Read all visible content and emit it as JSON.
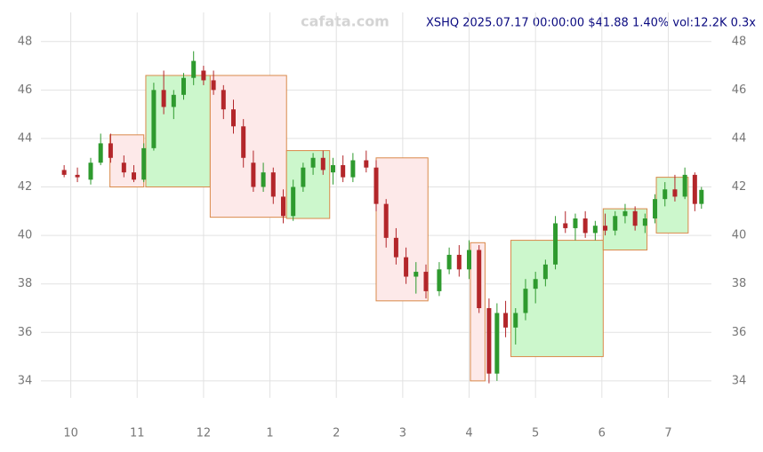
{
  "chart_data": {
    "type": "candlestick",
    "title": "XSHQ 2025.07.17 00:00:00 $41.88 1.40% vol:12.2K 0.3x",
    "watermark": "cafata.com",
    "xlim": [
      -0.45,
      9.65
    ],
    "xticks": [
      {
        "value": 0,
        "label": "10"
      },
      {
        "value": 1,
        "label": "11"
      },
      {
        "value": 2,
        "label": "12"
      },
      {
        "value": 3,
        "label": "1"
      },
      {
        "value": 4,
        "label": "2"
      },
      {
        "value": 5,
        "label": "3"
      },
      {
        "value": 6,
        "label": "4"
      },
      {
        "value": 7,
        "label": "5"
      },
      {
        "value": 8,
        "label": "6"
      },
      {
        "value": 9,
        "label": "7"
      }
    ],
    "ylim": [
      33.3,
      49.2
    ],
    "yticks": [
      34,
      36,
      38,
      40,
      42,
      44,
      46,
      48
    ],
    "grid": true,
    "up_color": "#2e9a2e",
    "down_color": "#b3262a",
    "x": [
      -0.1,
      0.1,
      0.3,
      0.45,
      0.6,
      0.8,
      0.95,
      1.1,
      1.25,
      1.4,
      1.55,
      1.7,
      1.85,
      2.0,
      2.15,
      2.3,
      2.45,
      2.6,
      2.75,
      2.9,
      3.05,
      3.2,
      3.35,
      3.5,
      3.65,
      3.8,
      3.95,
      4.1,
      4.25,
      4.45,
      4.6,
      4.75,
      4.9,
      5.05,
      5.2,
      5.35,
      5.55,
      5.7,
      5.85,
      6.0,
      6.15,
      6.3,
      6.42,
      6.55,
      6.7,
      6.85,
      7.0,
      7.15,
      7.3,
      7.45,
      7.6,
      7.75,
      7.9,
      8.05,
      8.2,
      8.35,
      8.5,
      8.65,
      8.8,
      8.95,
      9.1,
      9.25,
      9.4,
      9.5
    ],
    "open": [
      42.7,
      42.5,
      42.3,
      43.0,
      43.8,
      43.0,
      42.6,
      42.3,
      43.6,
      46.0,
      45.3,
      45.8,
      46.5,
      46.8,
      46.4,
      46.0,
      45.2,
      44.5,
      43.0,
      42.0,
      42.6,
      41.6,
      40.8,
      42.0,
      42.8,
      43.2,
      42.6,
      42.9,
      42.4,
      43.1,
      42.8,
      41.3,
      39.9,
      39.1,
      38.3,
      38.5,
      37.7,
      38.6,
      39.2,
      38.6,
      39.4,
      37.0,
      34.3,
      36.8,
      36.2,
      36.8,
      37.8,
      38.2,
      38.8,
      40.5,
      40.3,
      40.7,
      40.1,
      40.4,
      40.2,
      40.8,
      41.0,
      40.4,
      40.7,
      41.5,
      41.9,
      41.6,
      42.5,
      41.3
    ],
    "high": [
      42.9,
      42.8,
      43.2,
      44.2,
      44.2,
      43.3,
      42.9,
      43.8,
      46.3,
      46.8,
      46.0,
      46.7,
      47.6,
      47.0,
      46.8,
      46.2,
      45.6,
      44.8,
      43.5,
      43.0,
      42.8,
      41.9,
      42.3,
      43.0,
      43.4,
      43.5,
      43.2,
      43.3,
      43.4,
      43.5,
      43.1,
      41.5,
      40.3,
      39.5,
      38.9,
      38.8,
      38.9,
      39.5,
      39.6,
      39.8,
      39.6,
      37.4,
      37.2,
      37.3,
      37.0,
      38.2,
      38.5,
      39.0,
      40.8,
      41.0,
      40.9,
      41.0,
      40.6,
      40.9,
      41.0,
      41.3,
      41.2,
      40.9,
      41.7,
      42.2,
      42.5,
      42.8,
      42.6,
      42.0
    ],
    "low": [
      42.4,
      42.2,
      42.1,
      42.9,
      43.0,
      42.4,
      42.2,
      42.2,
      43.5,
      45.0,
      44.8,
      45.6,
      46.2,
      46.2,
      45.8,
      44.8,
      44.2,
      42.8,
      41.8,
      41.8,
      41.3,
      40.5,
      40.6,
      41.8,
      42.5,
      42.5,
      42.1,
      42.2,
      42.2,
      42.6,
      41.0,
      39.5,
      38.8,
      38.0,
      37.6,
      37.4,
      37.5,
      38.4,
      38.3,
      38.2,
      36.8,
      33.9,
      34.0,
      35.8,
      35.5,
      36.5,
      37.2,
      37.9,
      38.6,
      40.1,
      39.8,
      39.9,
      39.8,
      40.0,
      40.0,
      40.5,
      40.2,
      40.1,
      40.5,
      41.2,
      41.4,
      41.5,
      41.0,
      41.1
    ],
    "close": [
      42.5,
      42.4,
      43.0,
      43.8,
      43.2,
      42.6,
      42.3,
      43.6,
      46.0,
      45.3,
      45.8,
      46.5,
      47.2,
      46.4,
      46.0,
      45.2,
      44.5,
      43.2,
      42.0,
      42.6,
      41.6,
      40.8,
      42.0,
      42.8,
      43.2,
      42.7,
      42.9,
      42.4,
      43.1,
      42.8,
      41.3,
      39.9,
      39.1,
      38.3,
      38.5,
      37.7,
      38.6,
      39.2,
      38.6,
      39.4,
      37.0,
      34.3,
      36.8,
      36.2,
      36.8,
      37.8,
      38.2,
      38.8,
      40.5,
      40.3,
      40.7,
      40.1,
      40.4,
      40.2,
      40.8,
      41.0,
      40.4,
      40.7,
      41.5,
      41.9,
      41.6,
      42.5,
      41.3,
      41.88
    ],
    "boxes": [
      {
        "x": [
          0.59,
          1.1
        ],
        "y": [
          42.0,
          44.15
        ],
        "fill": "#fde9e9"
      },
      {
        "x": [
          1.13,
          2.1
        ],
        "y": [
          42.0,
          46.6
        ],
        "fill": "#ccf7cc"
      },
      {
        "x": [
          2.1,
          3.25
        ],
        "y": [
          40.75,
          46.6
        ],
        "fill": "#fde9e9"
      },
      {
        "x": [
          3.25,
          3.9
        ],
        "y": [
          40.7,
          43.5
        ],
        "fill": "#ccf7cc"
      },
      {
        "x": [
          4.6,
          5.38
        ],
        "y": [
          37.3,
          43.2
        ],
        "fill": "#fde9e9"
      },
      {
        "x": [
          6.02,
          6.24
        ],
        "y": [
          34.0,
          39.7
        ],
        "fill": "#fde9e9"
      },
      {
        "x": [
          6.63,
          8.02
        ],
        "y": [
          35.0,
          39.8
        ],
        "fill": "#ccf7cc"
      },
      {
        "x": [
          8.02,
          8.68
        ],
        "y": [
          39.4,
          41.1
        ],
        "fill": "#ccf7cc"
      },
      {
        "x": [
          8.82,
          9.3
        ],
        "y": [
          40.1,
          42.4
        ],
        "fill": "#ccf7cc"
      }
    ]
  }
}
